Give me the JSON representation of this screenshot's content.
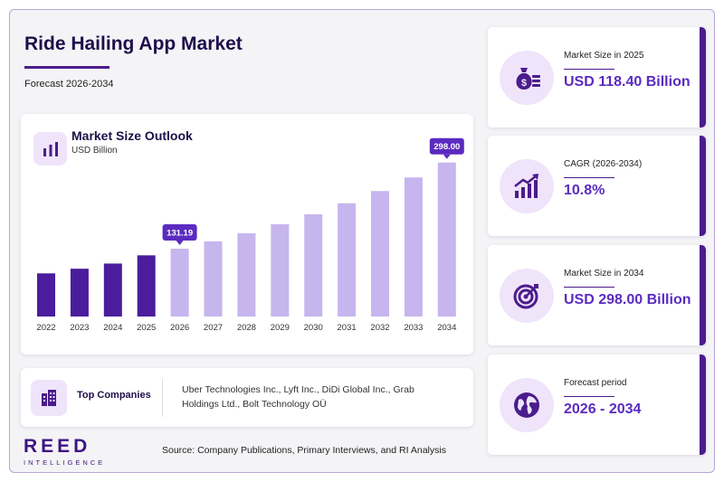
{
  "header": {
    "title": "Ride Hailing App Market",
    "subtitle": "Forecast 2026-2034"
  },
  "chart_panel": {
    "title": "Market Size Outlook",
    "unit": "USD Billion",
    "icon": "bar-chart-icon"
  },
  "chart_data": {
    "type": "bar",
    "categories": [
      "2022",
      "2023",
      "2024",
      "2025",
      "2026",
      "2027",
      "2028",
      "2029",
      "2030",
      "2031",
      "2032",
      "2033",
      "2034"
    ],
    "values": [
      83.5,
      92.5,
      102.5,
      118.4,
      131.19,
      145.4,
      161.1,
      178.5,
      197.8,
      219.2,
      242.8,
      269.1,
      298.0
    ],
    "labeled": {
      "2026": "131.19",
      "2034": "298.00"
    },
    "historical_years": [
      "2022",
      "2023",
      "2024",
      "2025"
    ],
    "ylim": [
      0,
      350
    ],
    "colors": {
      "historical": "#4b1c9c",
      "forecast": "#c7b5ee",
      "callout": "#5b2bc0"
    }
  },
  "companies": {
    "label": "Top Companies",
    "icon": "building-icon",
    "list": "Uber Technologies Inc., Lyft Inc., DiDi Global Inc., Grab Holdings Ltd., Bolt Technology OÜ"
  },
  "footer": {
    "logo_main": "REED",
    "logo_sub": "INTELLIGENCE",
    "source": "Source: Company Publications, Primary Interviews, and RI Analysis"
  },
  "cards": [
    {
      "label": "Market Size in 2025",
      "value": "USD 118.40 Billion",
      "icon": "money-bag-icon"
    },
    {
      "label": "CAGR (2026-2034)",
      "value": "10.8%",
      "icon": "growth-chart-icon"
    },
    {
      "label": "Market Size in 2034",
      "value": "USD 298.00 Billion",
      "icon": "target-icon"
    },
    {
      "label": "Forecast period",
      "value": "2026 - 2034",
      "icon": "globe-icon"
    }
  ],
  "colors": {
    "accent": "#4b1c8c",
    "value_text": "#5b2bc0",
    "icon_bg": "#efe4fa"
  }
}
